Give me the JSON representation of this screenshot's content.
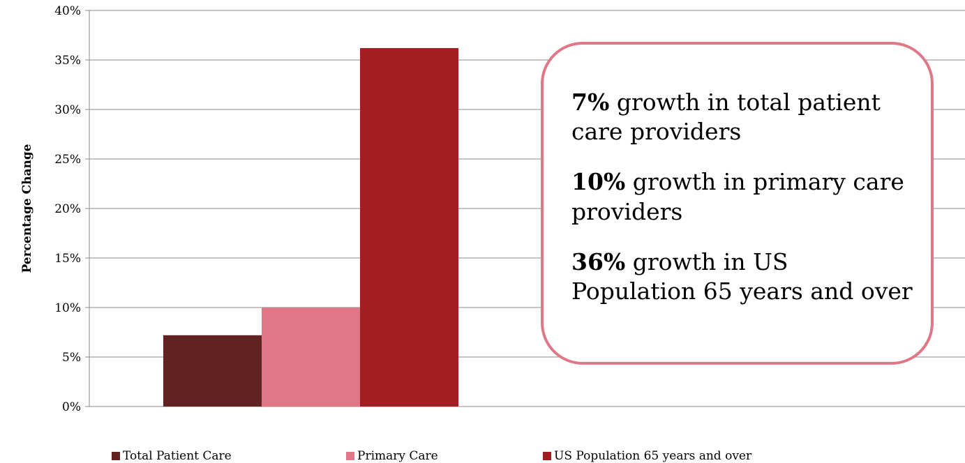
{
  "chart_data": {
    "type": "bar",
    "categories": [
      ""
    ],
    "series": [
      {
        "name": "Total Patient Care",
        "values": [
          7.2
        ],
        "color": "#622222"
      },
      {
        "name": "Primary Care",
        "values": [
          10.0
        ],
        "color": "#e07787"
      },
      {
        "name": "US Population 65 years and over",
        "values": [
          36.2
        ],
        "color": "#a11f22"
      }
    ],
    "title": "",
    "xlabel": "",
    "ylabel": "Percentage Change",
    "ylim": [
      0,
      40
    ],
    "yticks": [
      0,
      5,
      10,
      15,
      20,
      25,
      30,
      35,
      40
    ],
    "ytick_labels": [
      "0%",
      "5%",
      "10%",
      "15%",
      "20%",
      "25%",
      "30%",
      "35%",
      "40%"
    ],
    "grid": true,
    "legend_position": "bottom"
  },
  "callout": {
    "items": [
      {
        "highlight": "7%",
        "text": " growth in total patient care providers"
      },
      {
        "highlight": "10%",
        "text": " growth in primary care providers"
      },
      {
        "highlight": "36%",
        "text": " growth in US Population 65 years and over"
      }
    ]
  }
}
